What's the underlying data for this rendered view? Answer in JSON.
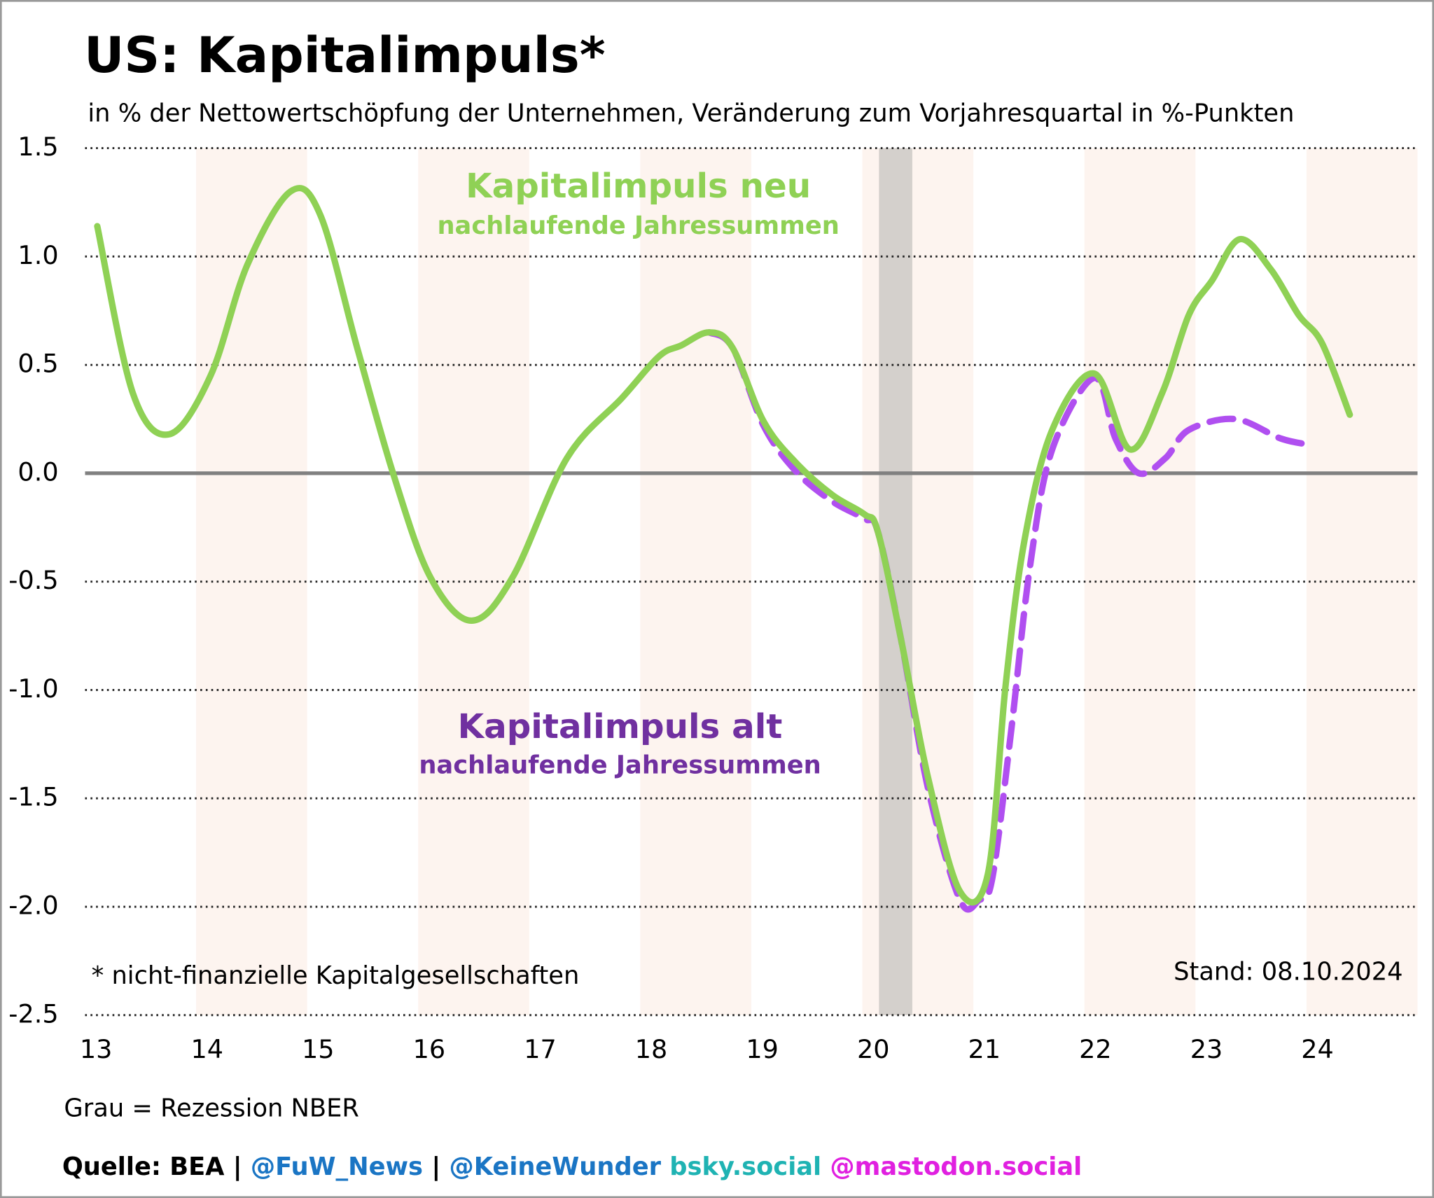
{
  "chart_data": {
    "type": "line",
    "title": "US: Kapitalimpuls*",
    "subtitle": "in % der Nettowertschöpfung der Unternehmen, Veränderung zum Vorjahresquartal in %-Punkten",
    "annotations": {
      "new_title": "Kapitalimpuls neu",
      "new_sub": "nachlaufende Jahressummen",
      "old_title": "Kapitalimpuls alt",
      "old_sub": "nachlaufende Jahressummen",
      "footnote": "* nicht-finanzielle Kapitalgesellschaften",
      "date": "Stand: 08.10.2024",
      "recession_note": "Grau = Rezession NBER"
    },
    "source": [
      "Quelle: BEA |",
      "@FuW_News",
      "|",
      "@KeineWunder",
      "bsky.social",
      "@mastodon.social"
    ],
    "source_colors": [
      "#000000",
      "#1a75c4",
      "#000000",
      "#1a75c4",
      "#1fb3b3",
      "#e020e0"
    ],
    "recession": [
      20.15,
      20.45
    ],
    "recession_color": "#d4d0cc",
    "xlim": [
      13,
      25
    ],
    "xticks": [
      13,
      14,
      15,
      16,
      17,
      18,
      19,
      20,
      21,
      22,
      23,
      24
    ],
    "ylim": [
      -2.5,
      1.5
    ],
    "yticks": [
      {
        "value": -2.5,
        "label": "-2.5"
      },
      {
        "value": -2,
        "label": "-2.0"
      },
      {
        "value": -1.5,
        "label": "-1.5"
      },
      {
        "value": -1,
        "label": "-1.0"
      },
      {
        "value": -0.5,
        "label": "-0.5"
      },
      {
        "value": 0,
        "label": "0.0"
      },
      0.5,
      {
        "value": 1,
        "label": "1.0"
      },
      1.5
    ],
    "grid": true,
    "series": [
      {
        "name": "Kapitalimpuls alt",
        "color": "#b04ff0",
        "dashed": true,
        "x": [
          18.62,
          18.83,
          19.11,
          19.4,
          19.73,
          20.02,
          20.14,
          20.35,
          20.59,
          20.88,
          21.05,
          21.17,
          21.34,
          21.51,
          21.71,
          22.09,
          22.28,
          22.49,
          22.73,
          22.94,
          23.36,
          23.77,
          24.05
        ],
        "values": [
          0.65,
          0.58,
          0.22,
          0.01,
          -0.13,
          -0.21,
          -0.27,
          -0.77,
          -1.45,
          -1.97,
          -1.97,
          -1.87,
          -1.19,
          -0.43,
          0.11,
          0.44,
          0.16,
          0.0,
          0.07,
          0.2,
          0.25,
          0.16,
          0.13
        ]
      },
      {
        "name": "Kapitalimpuls neu",
        "color": "#8fd155",
        "dashed": false,
        "x": [
          13.11,
          13.43,
          13.76,
          14.13,
          14.46,
          14.85,
          15.12,
          15.45,
          15.78,
          16.11,
          16.48,
          16.85,
          17.34,
          17.84,
          18.17,
          18.37,
          18.62,
          18.83,
          19.11,
          19.4,
          19.73,
          20.02,
          20.14,
          20.35,
          20.59,
          20.88,
          21.13,
          21.29,
          21.46,
          21.71,
          22.09,
          22.41,
          22.7,
          22.94,
          23.15,
          23.4,
          23.68,
          23.93,
          24.14,
          24.39
        ],
        "values": [
          1.14,
          0.37,
          0.18,
          0.45,
          0.96,
          1.3,
          1.19,
          0.58,
          -0.01,
          -0.48,
          -0.68,
          -0.48,
          0.07,
          0.35,
          0.54,
          0.59,
          0.65,
          0.58,
          0.24,
          0.05,
          -0.1,
          -0.19,
          -0.27,
          -0.77,
          -1.4,
          -1.93,
          -1.85,
          -0.98,
          -0.31,
          0.2,
          0.46,
          0.11,
          0.37,
          0.73,
          0.89,
          1.08,
          0.94,
          0.73,
          0.6,
          0.27
        ]
      }
    ]
  }
}
